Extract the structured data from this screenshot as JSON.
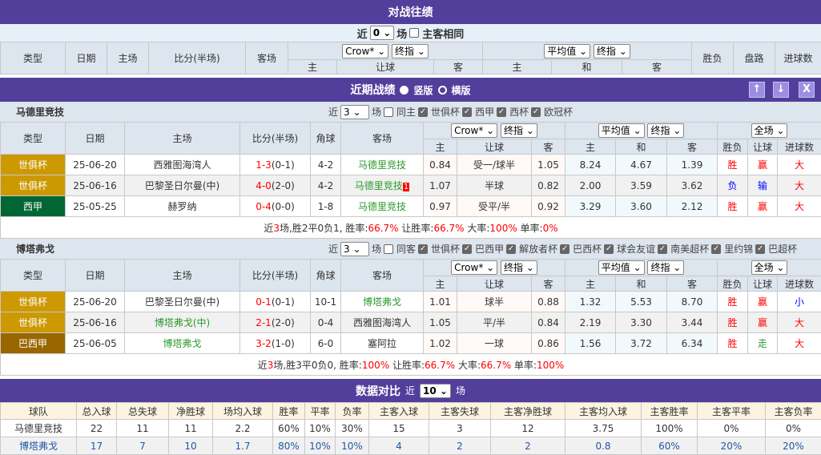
{
  "h2h": {
    "title": "对战往绩",
    "near": "近",
    "count": "0",
    "unit": "场",
    "same": "主客相同",
    "headers": [
      "类型",
      "日期",
      "主场",
      "比分(半场)",
      "客场",
      "胜负",
      "盘路",
      "进球数"
    ],
    "sel1": "Crow*",
    "sel2": "终指",
    "sel3": "平均值",
    "sel4": "终指",
    "sub": [
      "主",
      "让球",
      "客",
      "主",
      "和",
      "客"
    ]
  },
  "recent": {
    "title": "近期战绩",
    "opt1": "竖版",
    "opt2": "横版",
    "up": "↑",
    "down": "↓",
    "close": "X"
  },
  "teams": [
    {
      "name": "马德里竞技",
      "near": "近",
      "count": "3",
      "unit": "场",
      "same": "同主",
      "filters": [
        "世俱杯",
        "西甲",
        "西杯",
        "欧冠杯"
      ],
      "rows": [
        {
          "type": "世俱杯",
          "type_color": "#cc9900",
          "date": "25-06-20",
          "home": "西雅图海湾人",
          "home_hl": false,
          "score": "1-3",
          "half": "(0-1)",
          "corner": "4-2",
          "away": "马德里竞技",
          "away_hl": true,
          "badge": "",
          "o": [
            "0.84",
            "受一/球半",
            "1.05"
          ],
          "e": [
            "8.24",
            "4.67",
            "1.39"
          ],
          "res": "胜",
          "pan": "赢",
          "goal": "大"
        },
        {
          "type": "世俱杯",
          "type_color": "#cc9900",
          "date": "25-06-16",
          "home": "巴黎圣日尔曼(中)",
          "home_hl": false,
          "score": "4-0",
          "half": "(2-0)",
          "corner": "4-2",
          "away": "马德里竞技",
          "away_hl": true,
          "badge": "1",
          "o": [
            "1.07",
            "半球",
            "0.82"
          ],
          "e": [
            "2.00",
            "3.59",
            "3.62"
          ],
          "res": "负",
          "pan": "输",
          "goal": "大"
        },
        {
          "type": "西甲",
          "type_color": "#006633",
          "date": "25-05-25",
          "home": "赫罗纳",
          "home_hl": false,
          "score": "0-4",
          "half": "(0-0)",
          "corner": "1-8",
          "away": "马德里竞技",
          "away_hl": true,
          "badge": "",
          "o": [
            "0.97",
            "受平/半",
            "0.92"
          ],
          "e": [
            "3.29",
            "3.60",
            "2.12"
          ],
          "res": "胜",
          "pan": "赢",
          "goal": "大"
        }
      ],
      "summary": {
        "n": "3",
        "record": "场,胜2平0负1, 胜率:",
        "win": "66.7%",
        "rang_l": " 让胜率:",
        "rang": "66.7%",
        "big_l": " 大率:",
        "big": "100%",
        "odd_l": " 单率:",
        "odd": "0%"
      }
    },
    {
      "name": "博塔弗戈",
      "near": "近",
      "count": "3",
      "unit": "场",
      "same": "同客",
      "filters": [
        "世俱杯",
        "巴西甲",
        "解放者杯",
        "巴西杯",
        "球会友谊",
        "南美超杯",
        "里约锦",
        "巴超杯"
      ],
      "rows": [
        {
          "type": "世俱杯",
          "type_color": "#cc9900",
          "date": "25-06-20",
          "home": "巴黎圣日尔曼(中)",
          "home_hl": false,
          "score": "0-1",
          "half": "(0-1)",
          "corner": "10-1",
          "away": "博塔弗戈",
          "away_hl": true,
          "badge": "",
          "o": [
            "1.01",
            "球半",
            "0.88"
          ],
          "e": [
            "1.32",
            "5.53",
            "8.70"
          ],
          "res": "胜",
          "pan": "赢",
          "goal": "小"
        },
        {
          "type": "世俱杯",
          "type_color": "#cc9900",
          "date": "25-06-16",
          "home": "博塔弗戈(中)",
          "home_hl": true,
          "score": "2-1",
          "half": "(2-0)",
          "corner": "0-4",
          "away": "西雅图海湾人",
          "away_hl": false,
          "badge": "",
          "o": [
            "1.05",
            "平/半",
            "0.84"
          ],
          "e": [
            "2.19",
            "3.30",
            "3.44"
          ],
          "res": "胜",
          "pan": "赢",
          "goal": "大"
        },
        {
          "type": "巴西甲",
          "type_color": "#996600",
          "date": "25-06-05",
          "home": "博塔弗戈",
          "home_hl": true,
          "score": "3-2",
          "half": "(1-0)",
          "corner": "6-0",
          "away": "塞阿拉",
          "away_hl": false,
          "badge": "",
          "o": [
            "1.02",
            "一球",
            "0.86"
          ],
          "e": [
            "1.56",
            "3.72",
            "6.34"
          ],
          "res": "胜",
          "pan": "走",
          "goal": "大"
        }
      ],
      "summary": {
        "n": "3",
        "record": "场,胜3平0负0, 胜率:",
        "win": "100%",
        "rang_l": " 让胜率:",
        "rang": "66.7%",
        "big_l": " 大率:",
        "big": "66.7%",
        "odd_l": " 单率:",
        "odd": "100%"
      }
    }
  ],
  "compare": {
    "title": "数据对比",
    "near": "近",
    "count": "10",
    "unit": "场",
    "headers": [
      "球队",
      "总入球",
      "总失球",
      "净胜球",
      "场均入球",
      "胜率",
      "平率",
      "负率",
      "主客入球",
      "主客失球",
      "主客净胜球",
      "主客均入球",
      "主客胜率",
      "主客平率",
      "主客负率"
    ],
    "rows": [
      [
        "马德里竞技",
        "22",
        "11",
        "11",
        "2.2",
        "60%",
        "10%",
        "30%",
        "15",
        "3",
        "12",
        "3.75",
        "100%",
        "0%",
        "0%"
      ],
      [
        "博塔弗戈",
        "17",
        "7",
        "10",
        "1.7",
        "80%",
        "10%",
        "10%",
        "4",
        "2",
        "2",
        "0.8",
        "60%",
        "20%",
        "20%"
      ]
    ]
  },
  "colors": {
    "header": "#523f9b",
    "win": "#ff0000",
    "loss": "#0000ff",
    "draw": "#2a9a2a",
    "team": "#2a9a2a"
  }
}
